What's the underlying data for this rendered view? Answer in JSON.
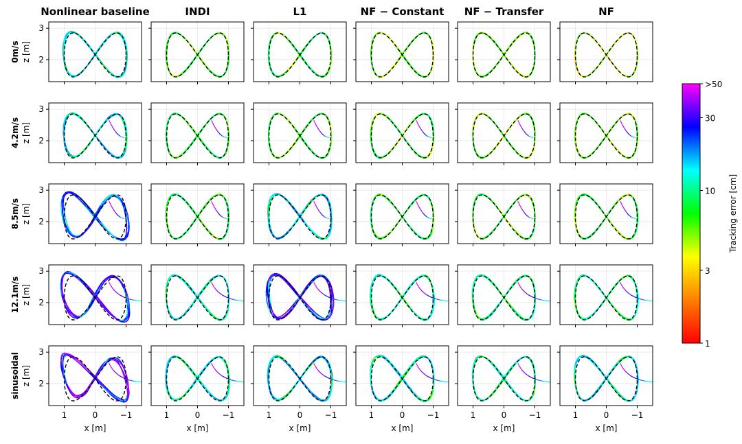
{
  "chart_data": {
    "type": "line",
    "columns": [
      "Nonlinear baseline",
      "INDI",
      "L1",
      "NF − Constant",
      "NF − Transfer",
      "NF"
    ],
    "rows": [
      "0m/s",
      "4.2m/s",
      "8.5m/s",
      "12.1m/s",
      "sinusoidal"
    ],
    "xlabel": "x [m]",
    "ylabel": "z [m]",
    "x_axis": {
      "inverted": true,
      "ticks": [
        1,
        0,
        -1
      ],
      "tick_labels": [
        "1",
        "0",
        "−1"
      ],
      "range": [
        1.5,
        -1.5
      ]
    },
    "y_axis": {
      "ticks": [
        2,
        3
      ],
      "tick_labels": [
        "2",
        "3"
      ],
      "range": [
        1.3,
        3.2
      ]
    },
    "grid": true,
    "reference": {
      "style": "dashed black",
      "curve": "figure-eight x = -cos(t), z = 2.15 + 0.7 sin(2t)"
    },
    "colorbar": {
      "label": "Tracking error [cm]",
      "scale": "log",
      "range": [
        1,
        50
      ],
      "ticks": [
        1,
        3,
        10,
        30,
        50
      ],
      "tick_labels": [
        "1",
        "3",
        "10",
        "30",
        ">50"
      ],
      "colors": [
        "#ff0000",
        "#ff8000",
        "#ffff00",
        "#00ff00",
        "#00ffff",
        "#0000ff",
        "#ff00ff"
      ]
    },
    "typical_error_cm": [
      [
        12,
        6,
        7,
        5,
        5,
        4
      ],
      [
        12,
        7,
        6,
        6,
        5,
        5
      ],
      [
        20,
        7,
        13,
        7,
        6,
        6
      ],
      [
        25,
        11,
        24,
        10,
        9,
        9
      ],
      [
        28,
        11,
        13,
        11,
        10,
        12
      ]
    ]
  }
}
